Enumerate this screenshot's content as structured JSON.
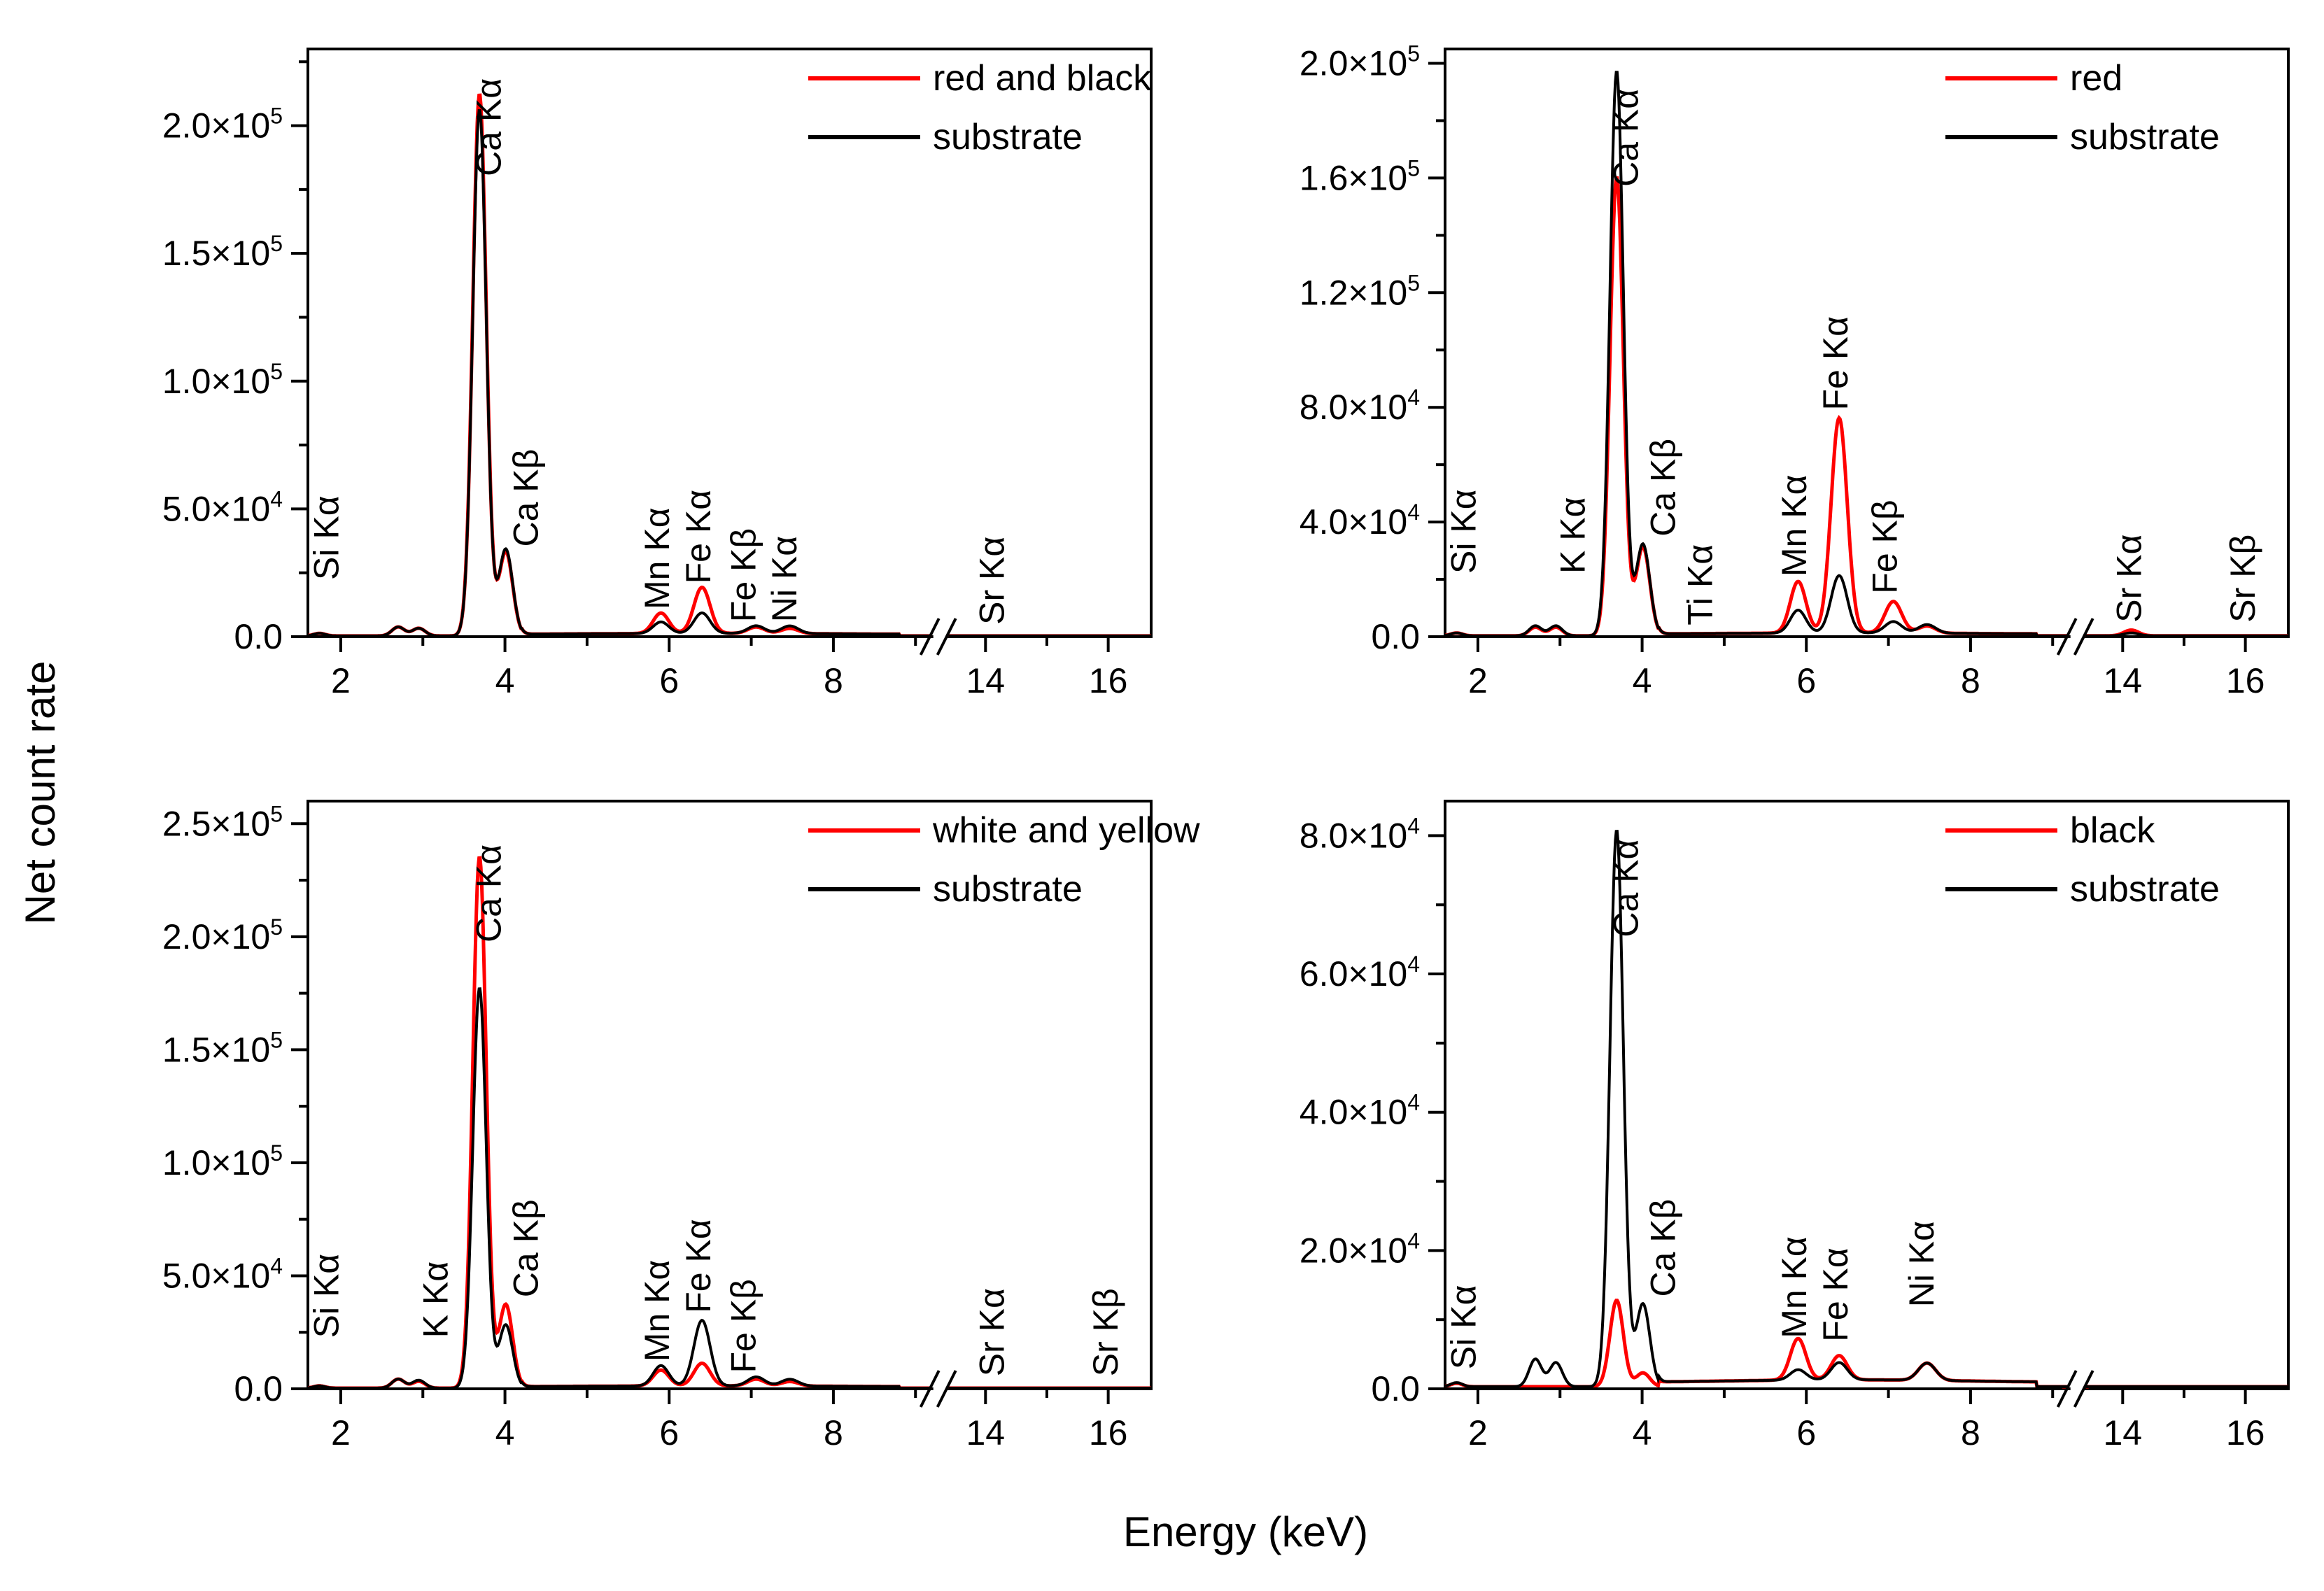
{
  "figure": {
    "ylabel": "Net count rate",
    "xlabel": "Energy (keV)"
  },
  "chart_data": [
    {
      "type": "line",
      "panel": "top-left",
      "xlabel": "Energy (keV)",
      "ylabel": "Net count rate",
      "x_ticks": [
        "2",
        "4",
        "6",
        "8",
        "14",
        "16"
      ],
      "y_ticks": [
        0,
        50000,
        100000,
        150000,
        200000
      ],
      "y_tick_labels": [
        {
          "m": "0.0",
          "e": ""
        },
        {
          "m": "5.0×10",
          "e": "4"
        },
        {
          "m": "1.0×10",
          "e": "5"
        },
        {
          "m": "1.5×10",
          "e": "5"
        },
        {
          "m": "2.0×10",
          "e": "5"
        }
      ],
      "ylim": [
        0,
        230000
      ],
      "x_axis_break": "between 8 and 14 keV",
      "legend_position": "top-right",
      "series": [
        {
          "name": "red and black",
          "color": "#ff0000",
          "peaks": [
            {
              "x": 1.74,
              "y": 1000
            },
            {
              "x": 2.7,
              "y": 3500
            },
            {
              "x": 2.95,
              "y": 3000
            },
            {
              "x": 3.69,
              "y": 212000
            },
            {
              "x": 4.01,
              "y": 33000
            },
            {
              "x": 5.9,
              "y": 8000
            },
            {
              "x": 6.4,
              "y": 18000
            },
            {
              "x": 7.06,
              "y": 2500
            },
            {
              "x": 7.47,
              "y": 2000
            }
          ]
        },
        {
          "name": "substrate",
          "color": "#000000",
          "peaks": [
            {
              "x": 1.74,
              "y": 1000
            },
            {
              "x": 2.7,
              "y": 3500
            },
            {
              "x": 2.95,
              "y": 3000
            },
            {
              "x": 3.69,
              "y": 206000
            },
            {
              "x": 4.01,
              "y": 34000
            },
            {
              "x": 5.9,
              "y": 4500
            },
            {
              "x": 6.4,
              "y": 8000
            },
            {
              "x": 7.06,
              "y": 3000
            },
            {
              "x": 7.47,
              "y": 3000
            }
          ]
        }
      ],
      "annotations": [
        {
          "text": "Si Kα",
          "x": 1.97,
          "y": 20000
        },
        {
          "text": "Ca Kα",
          "x": 3.95,
          "y": 178000
        },
        {
          "text": "Ca Kβ",
          "x": 4.4,
          "y": 33000
        },
        {
          "text": "Mn Kα",
          "x": 6.0,
          "y": 8500
        },
        {
          "text": "Fe Kα",
          "x": 6.5,
          "y": 18500
        },
        {
          "text": "Fe Kβ",
          "x": 7.05,
          "y": 3500
        },
        {
          "text": "Ni Kα",
          "x": 7.55,
          "y": 3500
        },
        {
          "text": "Sr Kα",
          "x": 14.3,
          "y": 2500
        }
      ]
    },
    {
      "type": "line",
      "panel": "top-right",
      "xlabel": "Energy (keV)",
      "ylabel": "Net count rate",
      "x_ticks": [
        "2",
        "4",
        "6",
        "8",
        "14",
        "16"
      ],
      "y_ticks": [
        0,
        40000,
        80000,
        120000,
        160000,
        200000
      ],
      "y_tick_labels": [
        {
          "m": "0.0",
          "e": ""
        },
        {
          "m": "4.0×10",
          "e": "4"
        },
        {
          "m": "8.0×10",
          "e": "4"
        },
        {
          "m": "1.2×10",
          "e": "5"
        },
        {
          "m": "1.6×10",
          "e": "5"
        },
        {
          "m": "2.0×10",
          "e": "5"
        }
      ],
      "ylim": [
        0,
        205000
      ],
      "x_axis_break": "between 8 and 14 keV",
      "legend_position": "top-right",
      "series": [
        {
          "name": "red",
          "color": "#ff0000",
          "peaks": [
            {
              "x": 1.74,
              "y": 1000
            },
            {
              "x": 2.7,
              "y": 3000
            },
            {
              "x": 2.95,
              "y": 3000
            },
            {
              "x": 3.69,
              "y": 160000
            },
            {
              "x": 4.01,
              "y": 31000
            },
            {
              "x": 5.9,
              "y": 18000
            },
            {
              "x": 6.4,
              "y": 75000
            },
            {
              "x": 7.06,
              "y": 11000
            },
            {
              "x": 7.47,
              "y": 2500
            },
            {
              "x": 14.14,
              "y": 2000
            }
          ]
        },
        {
          "name": "substrate",
          "color": "#000000",
          "peaks": [
            {
              "x": 1.74,
              "y": 1000
            },
            {
              "x": 2.7,
              "y": 3500
            },
            {
              "x": 2.95,
              "y": 3500
            },
            {
              "x": 3.69,
              "y": 197000
            },
            {
              "x": 4.01,
              "y": 32000
            },
            {
              "x": 5.9,
              "y": 8000
            },
            {
              "x": 6.4,
              "y": 20000
            },
            {
              "x": 7.06,
              "y": 4000
            },
            {
              "x": 7.47,
              "y": 3000
            },
            {
              "x": 14.14,
              "y": 1000
            }
          ]
        }
      ],
      "annotations": [
        {
          "text": "Si Kα",
          "x": 1.97,
          "y": 20000
        },
        {
          "text": "K Kα",
          "x": 3.3,
          "y": 20000
        },
        {
          "text": "Ca Kα",
          "x": 3.95,
          "y": 155000
        },
        {
          "text": "Ca Kβ",
          "x": 4.4,
          "y": 33000
        },
        {
          "text": "Ti Kα",
          "x": 4.85,
          "y": 2000
        },
        {
          "text": "Mn Kα",
          "x": 6.0,
          "y": 19000
        },
        {
          "text": "Fe Kα",
          "x": 6.5,
          "y": 77000
        },
        {
          "text": "Fe Kβ",
          "x": 7.1,
          "y": 13000
        },
        {
          "text": "Sr Kα",
          "x": 14.3,
          "y": 3000
        },
        {
          "text": "Sr Kβ",
          "x": 16.15,
          "y": 3000
        }
      ]
    },
    {
      "type": "line",
      "panel": "bottom-left",
      "xlabel": "Energy (keV)",
      "ylabel": "Net count rate",
      "x_ticks": [
        "2",
        "4",
        "6",
        "8",
        "14",
        "16"
      ],
      "y_ticks": [
        0,
        50000,
        100000,
        150000,
        200000,
        250000
      ],
      "y_tick_labels": [
        {
          "m": "0.0",
          "e": ""
        },
        {
          "m": "5.0×10",
          "e": "4"
        },
        {
          "m": "1.0×10",
          "e": "5"
        },
        {
          "m": "1.5×10",
          "e": "5"
        },
        {
          "m": "2.0×10",
          "e": "5"
        },
        {
          "m": "2.5×10",
          "e": "5"
        }
      ],
      "ylim": [
        0,
        260000
      ],
      "x_axis_break": "between 8 and 14 keV",
      "legend_position": "top-right",
      "series": [
        {
          "name": "white and yellow",
          "color": "#ff0000",
          "peaks": [
            {
              "x": 1.74,
              "y": 1000
            },
            {
              "x": 2.7,
              "y": 4000
            },
            {
              "x": 2.95,
              "y": 3000
            },
            {
              "x": 3.69,
              "y": 235000
            },
            {
              "x": 4.01,
              "y": 37000
            },
            {
              "x": 5.9,
              "y": 7000
            },
            {
              "x": 6.4,
              "y": 10000
            },
            {
              "x": 7.06,
              "y": 3000
            },
            {
              "x": 7.47,
              "y": 2000
            }
          ]
        },
        {
          "name": "substrate",
          "color": "#000000",
          "peaks": [
            {
              "x": 1.74,
              "y": 1000
            },
            {
              "x": 2.7,
              "y": 4000
            },
            {
              "x": 2.95,
              "y": 3500
            },
            {
              "x": 3.69,
              "y": 177000
            },
            {
              "x": 4.01,
              "y": 28000
            },
            {
              "x": 5.9,
              "y": 9000
            },
            {
              "x": 6.4,
              "y": 29000
            },
            {
              "x": 7.06,
              "y": 4000
            },
            {
              "x": 7.47,
              "y": 3000
            }
          ]
        }
      ],
      "annotations": [
        {
          "text": "Si Kα",
          "x": 1.97,
          "y": 20000
        },
        {
          "text": "K Kα",
          "x": 3.3,
          "y": 20000
        },
        {
          "text": "Ca Kα",
          "x": 3.95,
          "y": 195000
        },
        {
          "text": "Ca Kβ",
          "x": 4.4,
          "y": 38000
        },
        {
          "text": "Mn Kα",
          "x": 6.0,
          "y": 9500
        },
        {
          "text": "Fe Kα",
          "x": 6.5,
          "y": 31000
        },
        {
          "text": "Fe Kβ",
          "x": 7.05,
          "y": 4500
        },
        {
          "text": "Sr Kα",
          "x": 14.3,
          "y": 3000
        },
        {
          "text": "Sr Kβ",
          "x": 16.15,
          "y": 3000
        }
      ]
    },
    {
      "type": "line",
      "panel": "bottom-right",
      "xlabel": "Energy (keV)",
      "ylabel": "Net count rate",
      "x_ticks": [
        "2",
        "4",
        "6",
        "8",
        "14",
        "16"
      ],
      "y_ticks": [
        0,
        20000,
        40000,
        60000,
        80000
      ],
      "y_tick_labels": [
        {
          "m": "0.0",
          "e": ""
        },
        {
          "m": "2.0×10",
          "e": "4"
        },
        {
          "m": "4.0×10",
          "e": "4"
        },
        {
          "m": "6.0×10",
          "e": "4"
        },
        {
          "m": "8.0×10",
          "e": "4"
        }
      ],
      "ylim": [
        0,
        85000
      ],
      "x_axis_break": "between 8 and 14 keV",
      "legend_position": "top-right",
      "series": [
        {
          "name": "black",
          "color": "#ff0000",
          "peaks": [
            {
              "x": 1.74,
              "y": 500
            },
            {
              "x": 3.69,
              "y": 12500
            },
            {
              "x": 4.01,
              "y": 2000
            },
            {
              "x": 5.9,
              "y": 6000
            },
            {
              "x": 6.4,
              "y": 3500
            },
            {
              "x": 7.47,
              "y": 2500
            }
          ]
        },
        {
          "name": "substrate",
          "color": "#000000",
          "peaks": [
            {
              "x": 1.74,
              "y": 600
            },
            {
              "x": 2.7,
              "y": 4000
            },
            {
              "x": 2.95,
              "y": 3500
            },
            {
              "x": 3.69,
              "y": 80500
            },
            {
              "x": 4.01,
              "y": 12000
            },
            {
              "x": 5.9,
              "y": 1500
            },
            {
              "x": 6.4,
              "y": 2500
            },
            {
              "x": 7.47,
              "y": 2500
            }
          ]
        }
      ],
      "annotations": [
        {
          "text": "Si Kα",
          "x": 1.97,
          "y": 2000
        },
        {
          "text": "Ca Kα",
          "x": 3.95,
          "y": 64500
        },
        {
          "text": "Ca Kβ",
          "x": 4.4,
          "y": 12500
        },
        {
          "text": "Mn Kα",
          "x": 6.0,
          "y": 6500
        },
        {
          "text": "Fe Kα",
          "x": 6.5,
          "y": 6000
        },
        {
          "text": "Ni Kα",
          "x": 7.55,
          "y": 11000
        }
      ]
    }
  ]
}
